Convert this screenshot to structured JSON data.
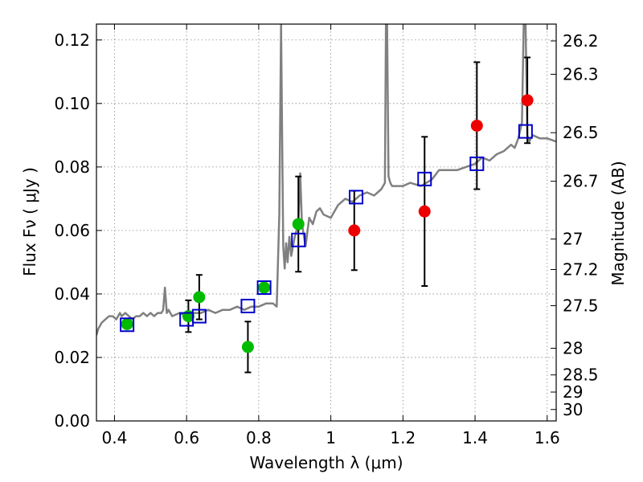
{
  "chart_data": {
    "type": "scatter",
    "title": "",
    "xlabel": "Wavelength  λ (μm)",
    "ylabel": "Flux  Fν  ( μJy )",
    "y2label": "Magnitude (AB)",
    "xlim": [
      0.35,
      1.625
    ],
    "ylim": [
      0.0,
      0.125
    ],
    "grid": true,
    "x_ticks": [
      0.4,
      0.6,
      0.8,
      1.0,
      1.2,
      1.4,
      1.6
    ],
    "x_tick_labels": [
      "0.4",
      "0.6",
      "0.8",
      "1",
      "1.2",
      "1.4",
      "1.6"
    ],
    "y_ticks": [
      0.0,
      0.02,
      0.04,
      0.06,
      0.08,
      0.1,
      0.12
    ],
    "y_tick_labels": [
      "0.00",
      "0.02",
      "0.04",
      "0.06",
      "0.08",
      "0.10",
      "0.12"
    ],
    "y2_tick_labels": [
      {
        "label": "26.2",
        "flux": 0.1197
      },
      {
        "label": "26.3",
        "flux": 0.1092
      },
      {
        "label": "26.5",
        "flux": 0.0908
      },
      {
        "label": "26.7",
        "flux": 0.0755
      },
      {
        "label": "27",
        "flux": 0.0573
      },
      {
        "label": "27.2",
        "flux": 0.0477
      },
      {
        "label": "27.5",
        "flux": 0.0363
      },
      {
        "label": "28",
        "flux": 0.0229
      },
      {
        "label": "28.5",
        "flux": 0.0145
      },
      {
        "label": "29",
        "flux": 0.0091
      },
      {
        "label": "30",
        "flux": 0.0036
      }
    ],
    "colors": {
      "spectrum": "#808080",
      "green_points": "#00bb00",
      "red_points": "#ee0000",
      "model_squares": "#0000cc",
      "error_bars": "#000000",
      "grid": "#888888"
    },
    "series": [
      {
        "marker": "line",
        "color": "#808080",
        "x": [
          0.35,
          0.355,
          0.365,
          0.375,
          0.385,
          0.395,
          0.405,
          0.41,
          0.415,
          0.42,
          0.43,
          0.44,
          0.45,
          0.46,
          0.47,
          0.48,
          0.49,
          0.5,
          0.51,
          0.52,
          0.53,
          0.535,
          0.54,
          0.545,
          0.55,
          0.56,
          0.58,
          0.6,
          0.62,
          0.64,
          0.66,
          0.68,
          0.7,
          0.72,
          0.74,
          0.76,
          0.78,
          0.8,
          0.82,
          0.84,
          0.85,
          0.857,
          0.862,
          0.865,
          0.868,
          0.872,
          0.876,
          0.88,
          0.885,
          0.89,
          0.9,
          0.91,
          0.915,
          0.92,
          0.93,
          0.94,
          0.95,
          0.96,
          0.97,
          0.98,
          1.0,
          1.02,
          1.04,
          1.06,
          1.08,
          1.1,
          1.12,
          1.14,
          1.15,
          1.153,
          1.156,
          1.16,
          1.165,
          1.17,
          1.2,
          1.22,
          1.25,
          1.28,
          1.3,
          1.35,
          1.4,
          1.42,
          1.44,
          1.46,
          1.48,
          1.5,
          1.51,
          1.52,
          1.53,
          1.535,
          1.54,
          1.545,
          1.55,
          1.56,
          1.58,
          1.6,
          1.625
        ],
        "y": [
          0.027,
          0.029,
          0.031,
          0.032,
          0.033,
          0.033,
          0.032,
          0.033,
          0.034,
          0.033,
          0.034,
          0.033,
          0.032,
          0.033,
          0.033,
          0.034,
          0.033,
          0.034,
          0.033,
          0.034,
          0.034,
          0.035,
          0.042,
          0.034,
          0.035,
          0.033,
          0.034,
          0.033,
          0.034,
          0.034,
          0.035,
          0.034,
          0.035,
          0.035,
          0.036,
          0.035,
          0.036,
          0.036,
          0.037,
          0.037,
          0.036,
          0.065,
          0.125,
          0.09,
          0.055,
          0.048,
          0.056,
          0.05,
          0.058,
          0.052,
          0.058,
          0.062,
          0.078,
          0.062,
          0.055,
          0.064,
          0.062,
          0.066,
          0.067,
          0.065,
          0.064,
          0.068,
          0.07,
          0.069,
          0.071,
          0.072,
          0.071,
          0.073,
          0.075,
          0.125,
          0.125,
          0.077,
          0.075,
          0.074,
          0.074,
          0.075,
          0.074,
          0.076,
          0.079,
          0.079,
          0.081,
          0.083,
          0.082,
          0.084,
          0.085,
          0.087,
          0.086,
          0.089,
          0.094,
          0.125,
          0.125,
          0.09,
          0.088,
          0.09,
          0.089,
          0.089,
          0.088
        ]
      },
      {
        "marker": "circle",
        "color": "#00bb00",
        "points": [
          {
            "x": 0.435,
            "y": 0.0305
          },
          {
            "x": 0.605,
            "y": 0.033,
            "err": 0.005
          },
          {
            "x": 0.635,
            "y": 0.039,
            "err": 0.007
          },
          {
            "x": 0.77,
            "y": 0.0233,
            "err": 0.008
          },
          {
            "x": 0.815,
            "y": 0.042
          },
          {
            "x": 0.91,
            "y": 0.062,
            "err": 0.015
          }
        ]
      },
      {
        "marker": "circle",
        "color": "#ee0000",
        "points": [
          {
            "x": 1.065,
            "y": 0.06,
            "err": 0.0125
          },
          {
            "x": 1.26,
            "y": 0.066,
            "err": 0.0235
          },
          {
            "x": 1.405,
            "y": 0.093,
            "err": 0.02
          },
          {
            "x": 1.545,
            "y": 0.101,
            "err": 0.0135
          }
        ]
      },
      {
        "marker": "square",
        "color": "#0000cc",
        "points": [
          {
            "x": 0.435,
            "y": 0.0303
          },
          {
            "x": 0.6,
            "y": 0.032
          },
          {
            "x": 0.635,
            "y": 0.033
          },
          {
            "x": 0.77,
            "y": 0.0362
          },
          {
            "x": 0.815,
            "y": 0.042
          },
          {
            "x": 0.91,
            "y": 0.057
          },
          {
            "x": 1.07,
            "y": 0.0705
          },
          {
            "x": 1.26,
            "y": 0.0762
          },
          {
            "x": 1.405,
            "y": 0.081
          },
          {
            "x": 1.54,
            "y": 0.0912
          }
        ]
      }
    ]
  }
}
